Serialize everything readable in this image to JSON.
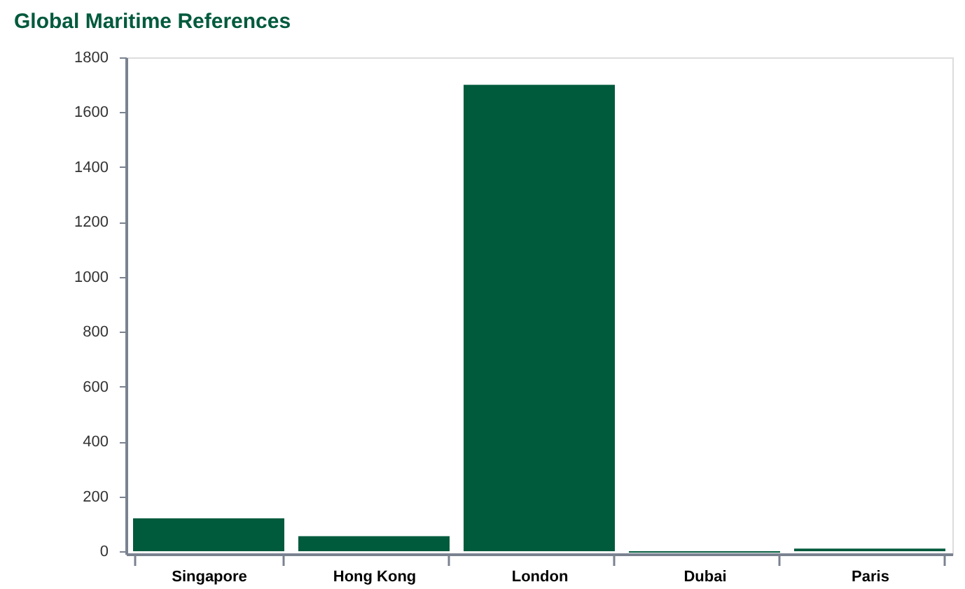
{
  "chart_data": {
    "type": "bar",
    "title": "Global Maritime References",
    "categories": [
      "Singapore",
      "Hong Kong",
      "London",
      "Dubai",
      "Paris"
    ],
    "values": [
      120,
      55,
      1700,
      -5,
      10
    ],
    "color": "#005a3c",
    "ylim": [
      -10,
      1800
    ],
    "yticks": [
      0,
      200,
      400,
      600,
      800,
      1000,
      1200,
      1400,
      1600,
      1800
    ],
    "grid": false
  }
}
